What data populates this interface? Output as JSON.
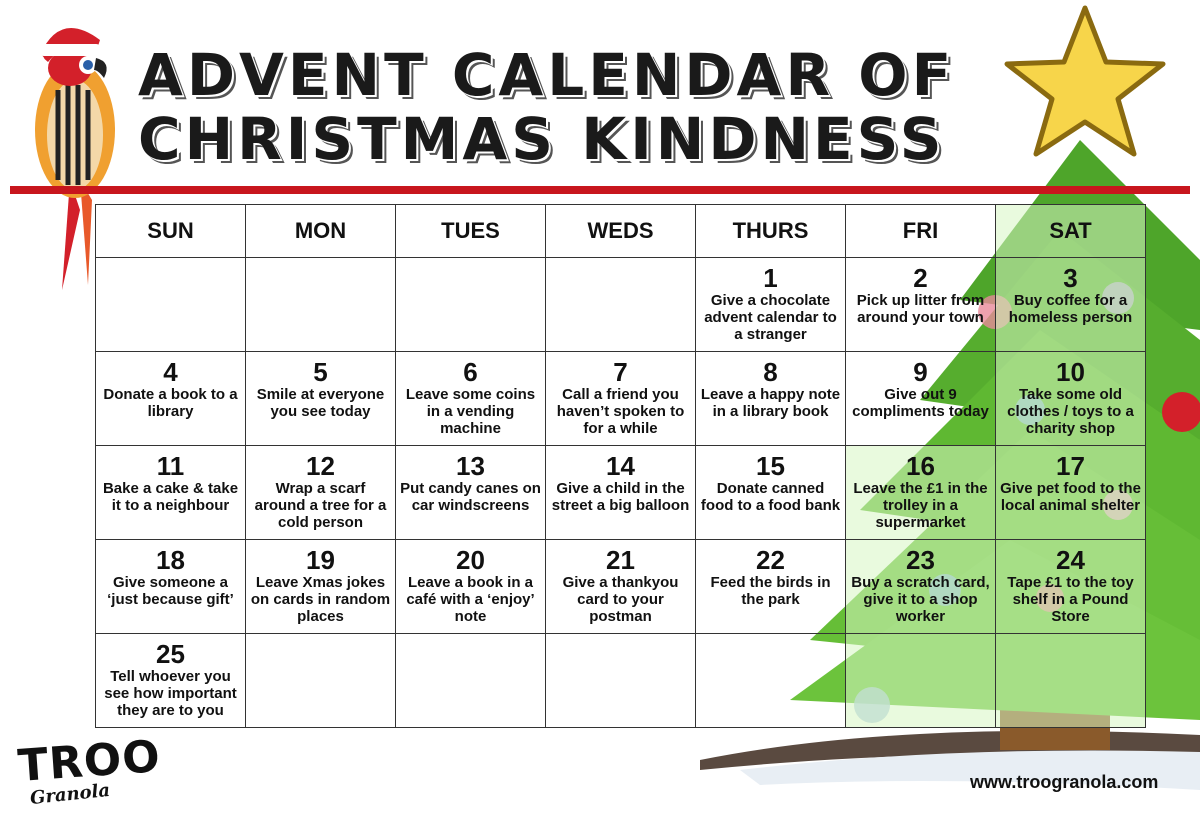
{
  "title": {
    "line1": "ADVENT CALENDAR OF",
    "line2": "CHRISTMAS KINDNESS"
  },
  "days": [
    "SUN",
    "MON",
    "TUES",
    "WEDS",
    "THURS",
    "FRI",
    "SAT"
  ],
  "weeks": [
    [
      {
        "num": "",
        "text": ""
      },
      {
        "num": "",
        "text": ""
      },
      {
        "num": "",
        "text": ""
      },
      {
        "num": "",
        "text": ""
      },
      {
        "num": "1",
        "text": "Give a chocolate advent calendar to a stranger"
      },
      {
        "num": "2",
        "text": "Pick up litter from around your town"
      },
      {
        "num": "3",
        "text": "Buy coffee for a homeless person"
      }
    ],
    [
      {
        "num": "4",
        "text": "Donate a book to a library"
      },
      {
        "num": "5",
        "text": "Smile at everyone you see today"
      },
      {
        "num": "6",
        "text": "Leave some coins in a vending machine"
      },
      {
        "num": "7",
        "text": "Call a friend you haven’t spoken to for a while"
      },
      {
        "num": "8",
        "text": "Leave a happy note in a library book"
      },
      {
        "num": "9",
        "text": "Give out 9 compliments today"
      },
      {
        "num": "10",
        "text": "Take some old clothes / toys to a charity shop"
      }
    ],
    [
      {
        "num": "11",
        "text": "Bake a cake & take it to a neighbour"
      },
      {
        "num": "12",
        "text": "Wrap a scarf around a tree for a cold person"
      },
      {
        "num": "13",
        "text": "Put candy canes on car windscreens"
      },
      {
        "num": "14",
        "text": "Give a child in the street a big balloon"
      },
      {
        "num": "15",
        "text": "Donate canned food to a food bank"
      },
      {
        "num": "16",
        "text": "Leave the £1 in the trolley in a supermarket"
      },
      {
        "num": "17",
        "text": "Give pet food to the local animal shelter"
      }
    ],
    [
      {
        "num": "18",
        "text": "Give someone a ‘just because gift’"
      },
      {
        "num": "19",
        "text": "Leave Xmas jokes on cards in random places"
      },
      {
        "num": "20",
        "text": "Leave a book in a café with a ‘enjoy’ note"
      },
      {
        "num": "21",
        "text": "Give a thankyou card to your postman"
      },
      {
        "num": "22",
        "text": "Feed the birds in the park"
      },
      {
        "num": "23",
        "text": "Buy a scratch card, give it to a shop worker"
      },
      {
        "num": "24",
        "text": "Tape £1 to the toy shelf in a Pound Store"
      }
    ],
    [
      {
        "num": "25",
        "text": "Tell whoever you see how important they are to you"
      },
      {
        "num": "",
        "text": ""
      },
      {
        "num": "",
        "text": ""
      },
      {
        "num": "",
        "text": ""
      },
      {
        "num": "",
        "text": ""
      },
      {
        "num": "",
        "text": ""
      },
      {
        "num": "",
        "text": ""
      }
    ]
  ],
  "logo": {
    "main": "TROO",
    "sub": "Granola"
  },
  "website": "www.troogranola.com",
  "colors": {
    "accent_red": "#c8161d",
    "tree_green": "#5fb832",
    "star_yellow": "#f7d54a"
  }
}
